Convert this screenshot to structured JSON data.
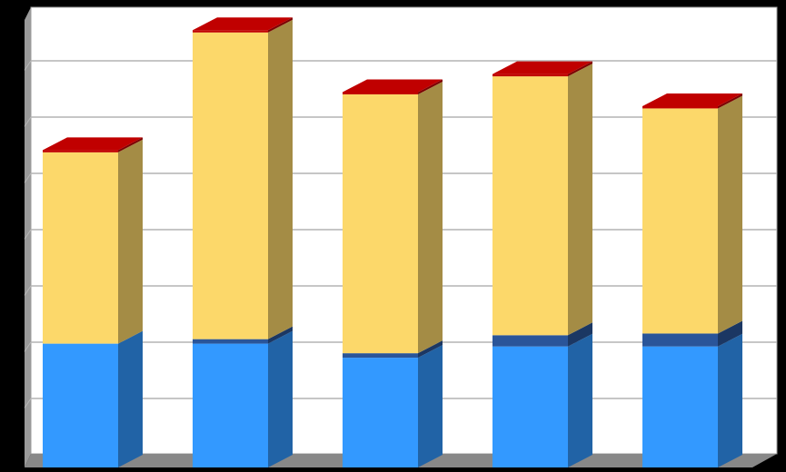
{
  "chart_data": {
    "type": "bar",
    "stacked": true,
    "three_d": true,
    "categories": [
      "",
      "",
      "",
      "",
      ""
    ],
    "series": [
      {
        "values": [
          22,
          22,
          19.5,
          21.5,
          21.5
        ],
        "color": "#3399ff"
      },
      {
        "values": [
          0,
          0.8,
          0.8,
          2,
          2.3
        ],
        "color": "#2a5599"
      },
      {
        "values": [
          34,
          54.5,
          46,
          46,
          40
        ],
        "color": "#fcd86a"
      },
      {
        "values": [
          0.4,
          0.4,
          0.4,
          0.4,
          0.4
        ],
        "color": "#c00000"
      }
    ],
    "ylim": [
      0,
      80
    ],
    "ytick_step": 10,
    "grid": true,
    "legend": "none",
    "colors": {
      "background": "#000000",
      "plot_area": "#ffffff",
      "back_wall_border": "#9e9e9e",
      "side_wall": "#9a9a9a",
      "floor": "#888888",
      "gridline": "#b4b4b4"
    }
  }
}
